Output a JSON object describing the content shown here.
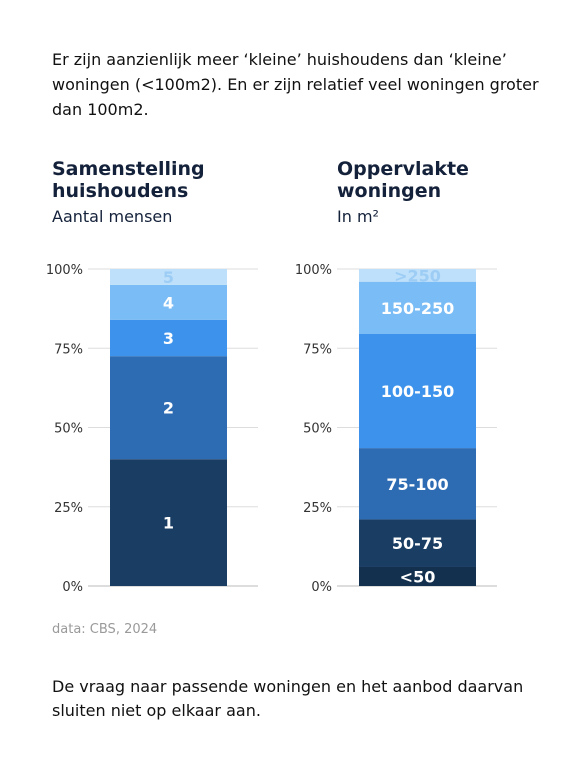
{
  "intro_text": "Er zijn aanzienlijk meer ‘kleine’ huishoudens dan ‘kleine’ woningen (<100m2). En er zijn relatief veel woningen groter dan 100m2.",
  "source": "data: CBS, 2024",
  "outro_text": "De vraag naar passende woningen en het aanbod daarvan sluiten niet op elkaar aan.",
  "chart_data": [
    {
      "type": "bar",
      "stacked": true,
      "title": "Samenstelling huishoudens",
      "subtitle": "Aantal mensen",
      "ylim": [
        0,
        100
      ],
      "y_ticks": [
        "0%",
        "25%",
        "50%",
        "75%",
        "100%"
      ],
      "grid": true,
      "segments": [
        {
          "label": "1",
          "value": 40,
          "color": "#1a3d63",
          "label_color": "#ffffff"
        },
        {
          "label": "2",
          "value": 32.5,
          "color": "#2d6bb3",
          "label_color": "#ffffff"
        },
        {
          "label": "3",
          "value": 11.5,
          "color": "#3d93ec",
          "label_color": "#ffffff"
        },
        {
          "label": "4",
          "value": 11,
          "color": "#7abcf5",
          "label_color": "#ffffff"
        },
        {
          "label": "5",
          "value": 5,
          "color": "#bee0fa",
          "label_color": "#9dcdf5"
        }
      ]
    },
    {
      "type": "bar",
      "stacked": true,
      "title": "Oppervlakte woningen",
      "subtitle": "In m²",
      "ylim": [
        0,
        100
      ],
      "y_ticks": [
        "0%",
        "25%",
        "50%",
        "75%",
        "100%"
      ],
      "grid": true,
      "segments": [
        {
          "label": "<50",
          "value": 6,
          "color": "#13304f",
          "label_color": "#ffffff"
        },
        {
          "label": "50-75",
          "value": 15,
          "color": "#1a3d63",
          "label_color": "#ffffff"
        },
        {
          "label": "75-100",
          "value": 22.5,
          "color": "#2d6bb3",
          "label_color": "#ffffff"
        },
        {
          "label": "100-150",
          "value": 36,
          "color": "#3d93ec",
          "label_color": "#ffffff"
        },
        {
          "label": "150-250",
          "value": 16.5,
          "color": "#7abcf5",
          "label_color": "#ffffff"
        },
        {
          "label": ">250",
          "value": 4,
          "color": "#bee0fa",
          "label_color": "#9dcdf5"
        }
      ]
    }
  ]
}
